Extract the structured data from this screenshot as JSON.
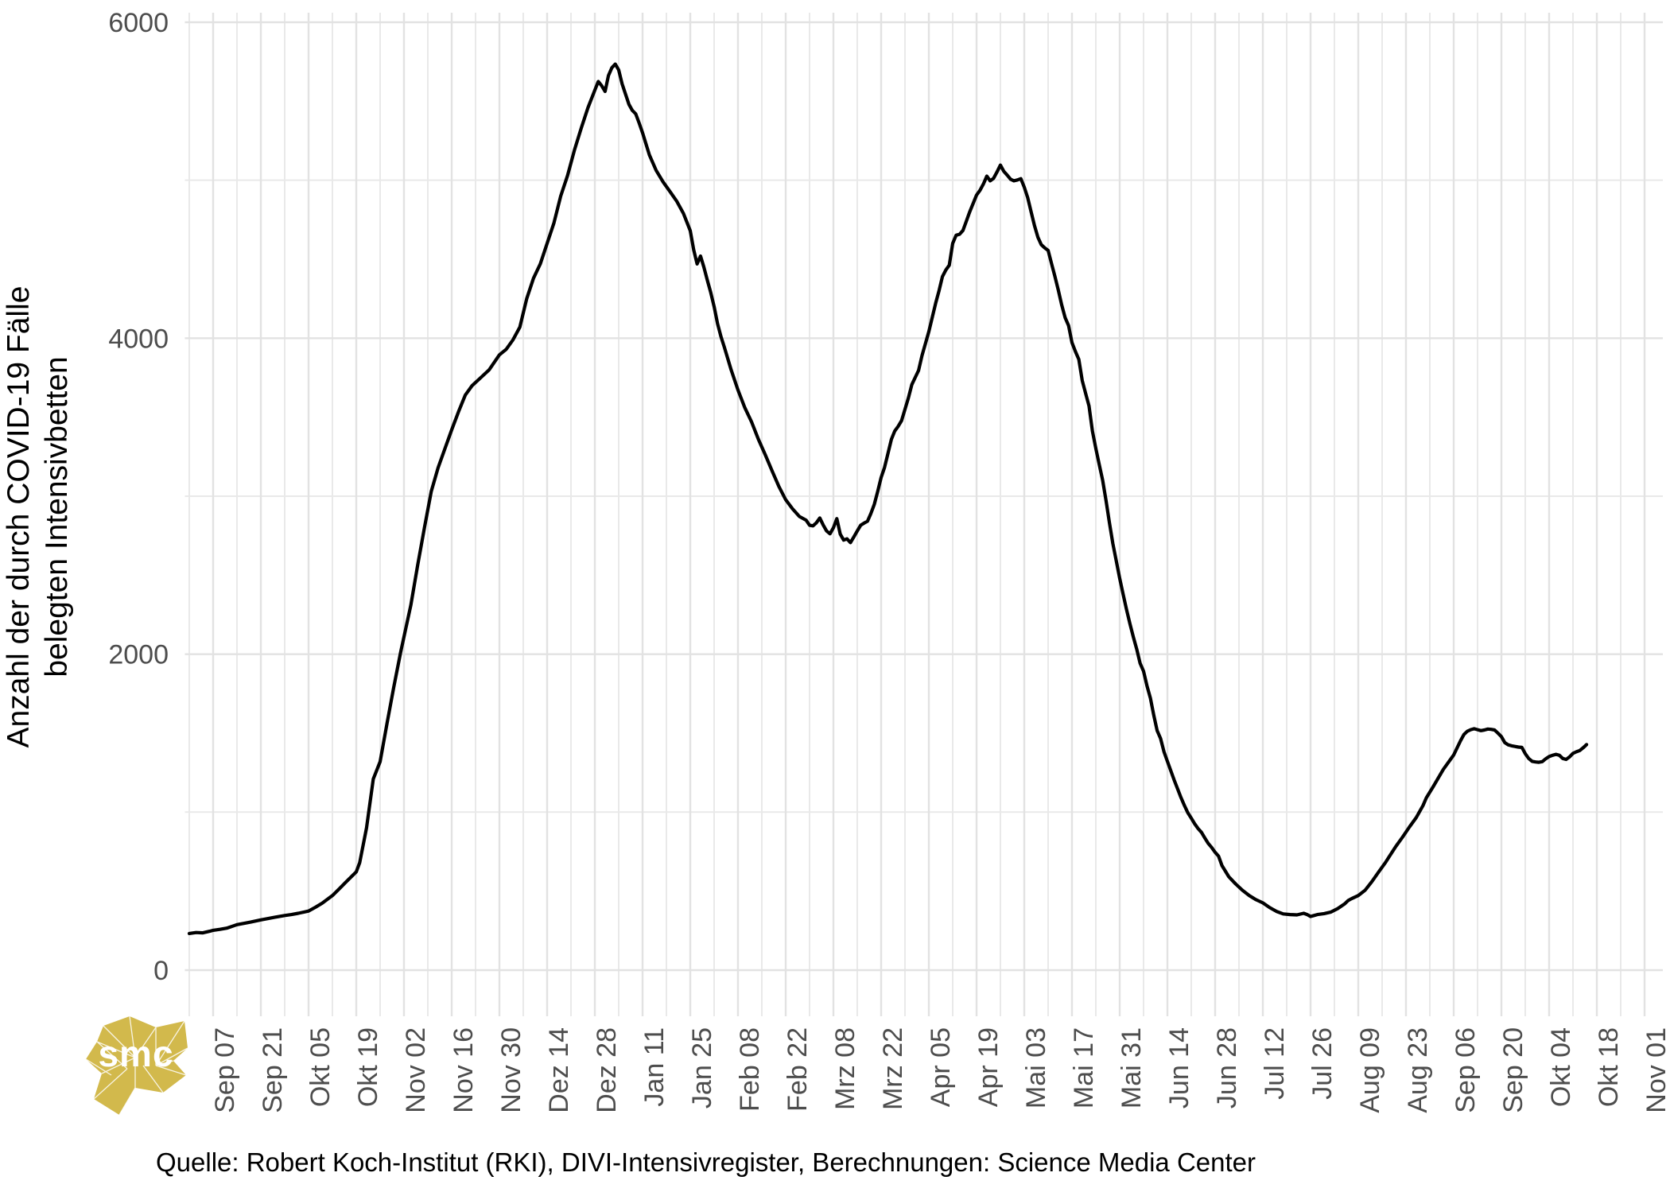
{
  "chart_data": {
    "type": "line",
    "title": "",
    "ylabel_line1": "Anzahl der durch COVID-19 Fälle",
    "ylabel_line2": "belegten Intensivbetten",
    "caption": "Quelle: Robert Koch-Institut (RKI), DIVI-Intensivregister, Berechnungen: Science Media Center",
    "x_tick_labels": [
      "Sep 07",
      "Sep 21",
      "Okt 05",
      "Okt 19",
      "Nov 02",
      "Nov 16",
      "Nov 30",
      "Dez 14",
      "Dez 28",
      "Jan 11",
      "Jan 25",
      "Feb 08",
      "Feb 22",
      "Mrz 08",
      "Mrz 22",
      "Apr 05",
      "Apr 19",
      "Mai 03",
      "Mai 17",
      "Mai 31",
      "Jun 14",
      "Jun 28",
      "Jul 12",
      "Jul 26",
      "Aug 09",
      "Aug 23",
      "Sep 06",
      "Sep 20",
      "Okt 04",
      "Okt 18",
      "Nov 01"
    ],
    "x_tick_interval_days": 14,
    "y_ticks": [
      0,
      2000,
      4000,
      6000
    ],
    "y_minor_ticks": [
      1000,
      3000,
      5000
    ],
    "ylim": [
      0,
      6000
    ],
    "grid": "major+minor",
    "legend_position": "none",
    "line_color": "#000000",
    "axis_text_color": "#4D4D4D",
    "grid_major_color": "#E2E2E2",
    "grid_minor_color": "#E9E9E9",
    "series": [
      {
        "name": "Durch COVID-19 Fälle belegte Intensivbetten",
        "x_unit": "Tage seit Sep 07 2020",
        "points": [
          [
            -7,
            232
          ],
          [
            -5,
            238
          ],
          [
            -3,
            236
          ],
          [
            -1,
            246
          ],
          [
            0,
            252
          ],
          [
            2,
            258
          ],
          [
            4,
            266
          ],
          [
            7,
            288
          ],
          [
            9,
            296
          ],
          [
            11,
            304
          ],
          [
            14,
            318
          ],
          [
            16,
            326
          ],
          [
            18,
            334
          ],
          [
            21,
            346
          ],
          [
            23,
            352
          ],
          [
            25,
            360
          ],
          [
            28,
            374
          ],
          [
            30,
            398
          ],
          [
            32,
            424
          ],
          [
            35,
            472
          ],
          [
            37,
            515
          ],
          [
            39,
            558
          ],
          [
            42,
            622
          ],
          [
            43,
            680
          ],
          [
            45,
            900
          ],
          [
            47,
            1210
          ],
          [
            49,
            1320
          ],
          [
            51,
            1560
          ],
          [
            53,
            1790
          ],
          [
            55,
            2010
          ],
          [
            56,
            2110
          ],
          [
            58,
            2310
          ],
          [
            60,
            2560
          ],
          [
            62,
            2800
          ],
          [
            64,
            3030
          ],
          [
            66,
            3180
          ],
          [
            68,
            3300
          ],
          [
            70,
            3420
          ],
          [
            72,
            3535
          ],
          [
            74,
            3640
          ],
          [
            76,
            3700
          ],
          [
            79,
            3760
          ],
          [
            81,
            3800
          ],
          [
            84,
            3895
          ],
          [
            86,
            3930
          ],
          [
            88,
            3990
          ],
          [
            90,
            4070
          ],
          [
            92,
            4250
          ],
          [
            94,
            4380
          ],
          [
            96,
            4470
          ],
          [
            98,
            4600
          ],
          [
            100,
            4730
          ],
          [
            102,
            4900
          ],
          [
            104,
            5030
          ],
          [
            106,
            5190
          ],
          [
            108,
            5330
          ],
          [
            110,
            5460
          ],
          [
            112,
            5570
          ],
          [
            113,
            5625
          ],
          [
            114,
            5598
          ],
          [
            115,
            5562
          ],
          [
            116,
            5662
          ],
          [
            117,
            5712
          ],
          [
            118,
            5735
          ],
          [
            119,
            5698
          ],
          [
            120,
            5610
          ],
          [
            121,
            5545
          ],
          [
            122,
            5480
          ],
          [
            123,
            5442
          ],
          [
            124,
            5420
          ],
          [
            125,
            5362
          ],
          [
            126,
            5300
          ],
          [
            128,
            5160
          ],
          [
            130,
            5062
          ],
          [
            132,
            4990
          ],
          [
            134,
            4930
          ],
          [
            136,
            4868
          ],
          [
            138,
            4790
          ],
          [
            140,
            4680
          ],
          [
            141,
            4560
          ],
          [
            142,
            4470
          ],
          [
            143,
            4520
          ],
          [
            144,
            4450
          ],
          [
            145,
            4368
          ],
          [
            146,
            4290
          ],
          [
            147,
            4200
          ],
          [
            148,
            4092
          ],
          [
            149,
            4010
          ],
          [
            150,
            3942
          ],
          [
            152,
            3800
          ],
          [
            154,
            3672
          ],
          [
            156,
            3560
          ],
          [
            158,
            3470
          ],
          [
            160,
            3360
          ],
          [
            162,
            3262
          ],
          [
            164,
            3160
          ],
          [
            166,
            3062
          ],
          [
            168,
            2978
          ],
          [
            170,
            2920
          ],
          [
            172,
            2872
          ],
          [
            174,
            2848
          ],
          [
            175,
            2816
          ],
          [
            176,
            2812
          ],
          [
            177,
            2832
          ],
          [
            178,
            2862
          ],
          [
            179,
            2818
          ],
          [
            180,
            2780
          ],
          [
            181,
            2762
          ],
          [
            182,
            2800
          ],
          [
            183,
            2858
          ],
          [
            184,
            2760
          ],
          [
            185,
            2722
          ],
          [
            186,
            2730
          ],
          [
            187,
            2706
          ],
          [
            188,
            2742
          ],
          [
            189,
            2780
          ],
          [
            190,
            2816
          ],
          [
            191,
            2830
          ],
          [
            192,
            2842
          ],
          [
            193,
            2890
          ],
          [
            194,
            2948
          ],
          [
            195,
            3030
          ],
          [
            196,
            3118
          ],
          [
            197,
            3182
          ],
          [
            198,
            3270
          ],
          [
            199,
            3360
          ],
          [
            200,
            3412
          ],
          [
            201,
            3442
          ],
          [
            202,
            3478
          ],
          [
            204,
            3622
          ],
          [
            205,
            3706
          ],
          [
            206,
            3752
          ],
          [
            207,
            3796
          ],
          [
            208,
            3890
          ],
          [
            210,
            4042
          ],
          [
            212,
            4222
          ],
          [
            213,
            4302
          ],
          [
            214,
            4390
          ],
          [
            215,
            4432
          ],
          [
            216,
            4462
          ],
          [
            217,
            4600
          ],
          [
            218,
            4652
          ],
          [
            219,
            4658
          ],
          [
            220,
            4682
          ],
          [
            221,
            4740
          ],
          [
            222,
            4800
          ],
          [
            224,
            4906
          ],
          [
            225,
            4936
          ],
          [
            226,
            4976
          ],
          [
            227,
            5026
          ],
          [
            228,
            4996
          ],
          [
            229,
            5012
          ],
          [
            230,
            5052
          ],
          [
            231,
            5096
          ],
          [
            232,
            5056
          ],
          [
            233,
            5032
          ],
          [
            234,
            5006
          ],
          [
            235,
            4996
          ],
          [
            236,
            5002
          ],
          [
            237,
            5010
          ],
          [
            238,
            4956
          ],
          [
            239,
            4890
          ],
          [
            240,
            4800
          ],
          [
            241,
            4712
          ],
          [
            242,
            4640
          ],
          [
            243,
            4592
          ],
          [
            244,
            4572
          ],
          [
            245,
            4556
          ],
          [
            246,
            4472
          ],
          [
            247,
            4390
          ],
          [
            248,
            4302
          ],
          [
            249,
            4210
          ],
          [
            250,
            4130
          ],
          [
            251,
            4080
          ],
          [
            252,
            3972
          ],
          [
            253,
            3916
          ],
          [
            254,
            3866
          ],
          [
            255,
            3732
          ],
          [
            256,
            3652
          ],
          [
            257,
            3572
          ],
          [
            258,
            3412
          ],
          [
            259,
            3302
          ],
          [
            260,
            3200
          ],
          [
            261,
            3100
          ],
          [
            262,
            2970
          ],
          [
            263,
            2832
          ],
          [
            264,
            2700
          ],
          [
            265,
            2590
          ],
          [
            266,
            2480
          ],
          [
            267,
            2380
          ],
          [
            268,
            2282
          ],
          [
            269,
            2192
          ],
          [
            270,
            2110
          ],
          [
            271,
            2032
          ],
          [
            272,
            1942
          ],
          [
            273,
            1892
          ],
          [
            274,
            1800
          ],
          [
            275,
            1722
          ],
          [
            276,
            1612
          ],
          [
            277,
            1516
          ],
          [
            278,
            1466
          ],
          [
            279,
            1382
          ],
          [
            280,
            1322
          ],
          [
            281,
            1262
          ],
          [
            282,
            1202
          ],
          [
            283,
            1146
          ],
          [
            284,
            1092
          ],
          [
            285,
            1042
          ],
          [
            286,
            996
          ],
          [
            287,
            962
          ],
          [
            288,
            926
          ],
          [
            289,
            896
          ],
          [
            290,
            872
          ],
          [
            291,
            836
          ],
          [
            292,
            802
          ],
          [
            293,
            776
          ],
          [
            294,
            746
          ],
          [
            295,
            722
          ],
          [
            296,
            662
          ],
          [
            298,
            592
          ],
          [
            300,
            546
          ],
          [
            302,
            506
          ],
          [
            304,
            472
          ],
          [
            306,
            446
          ],
          [
            308,
            426
          ],
          [
            310,
            396
          ],
          [
            312,
            372
          ],
          [
            314,
            356
          ],
          [
            316,
            352
          ],
          [
            318,
            350
          ],
          [
            320,
            360
          ],
          [
            321,
            352
          ],
          [
            322,
            340
          ],
          [
            323,
            346
          ],
          [
            324,
            352
          ],
          [
            326,
            358
          ],
          [
            328,
            368
          ],
          [
            330,
            390
          ],
          [
            332,
            420
          ],
          [
            333,
            440
          ],
          [
            334,
            452
          ],
          [
            336,
            472
          ],
          [
            338,
            506
          ],
          [
            340,
            560
          ],
          [
            342,
            622
          ],
          [
            344,
            682
          ],
          [
            345,
            716
          ],
          [
            347,
            782
          ],
          [
            349,
            842
          ],
          [
            351,
            906
          ],
          [
            353,
            966
          ],
          [
            355,
            1042
          ],
          [
            356,
            1092
          ],
          [
            358,
            1162
          ],
          [
            360,
            1236
          ],
          [
            361,
            1272
          ],
          [
            363,
            1332
          ],
          [
            364,
            1362
          ],
          [
            366,
            1452
          ],
          [
            367,
            1492
          ],
          [
            368,
            1512
          ],
          [
            369,
            1522
          ],
          [
            370,
            1528
          ],
          [
            371,
            1522
          ],
          [
            372,
            1516
          ],
          [
            373,
            1520
          ],
          [
            374,
            1526
          ],
          [
            375,
            1524
          ],
          [
            376,
            1520
          ],
          [
            377,
            1500
          ],
          [
            378,
            1478
          ],
          [
            379,
            1440
          ],
          [
            380,
            1426
          ],
          [
            381,
            1420
          ],
          [
            382,
            1416
          ],
          [
            383,
            1412
          ],
          [
            384,
            1410
          ],
          [
            385,
            1370
          ],
          [
            386,
            1340
          ],
          [
            387,
            1322
          ],
          [
            388,
            1318
          ],
          [
            389,
            1316
          ],
          [
            390,
            1320
          ],
          [
            391,
            1338
          ],
          [
            392,
            1352
          ],
          [
            393,
            1360
          ],
          [
            394,
            1366
          ],
          [
            395,
            1360
          ],
          [
            396,
            1340
          ],
          [
            397,
            1334
          ],
          [
            398,
            1350
          ],
          [
            399,
            1372
          ],
          [
            400,
            1382
          ],
          [
            401,
            1390
          ],
          [
            402,
            1408
          ],
          [
            403,
            1428
          ]
        ]
      }
    ]
  },
  "logo": {
    "text": "smc",
    "color": "#D2B94C"
  }
}
